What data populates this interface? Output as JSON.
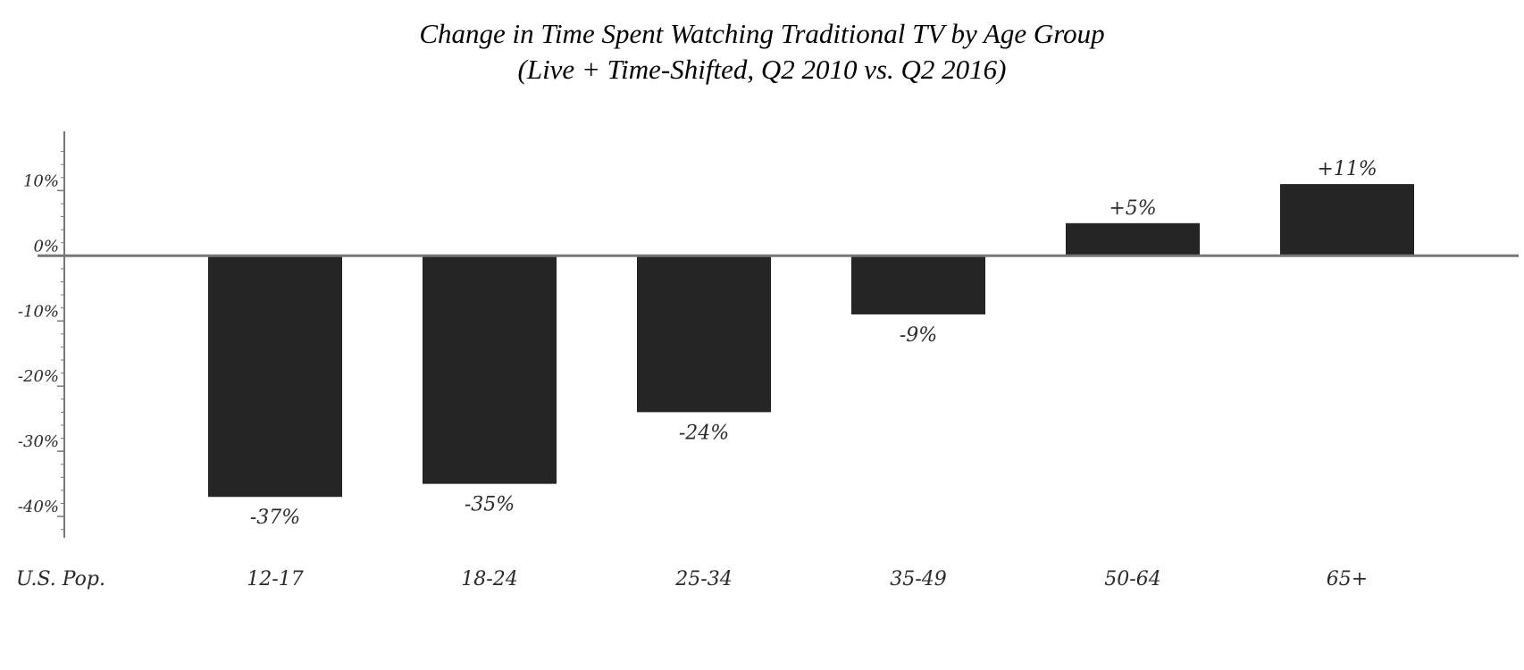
{
  "chart_data": {
    "type": "bar",
    "title": "Change in Time Spent Watching Traditional TV by Age Group",
    "subtitle": "(Live + Time-Shifted, Q2 2010 vs. Q2 2016)",
    "categories": [
      "U.S. Pop.",
      "12-17",
      "18-24",
      "25-34",
      "35-49",
      "50-64",
      "65+"
    ],
    "values": [
      null,
      -37,
      -35,
      -24,
      -9,
      5,
      11
    ],
    "data_labels": [
      "",
      "-37%",
      "-35%",
      "-24%",
      "-9%",
      "+5%",
      "+11%"
    ],
    "y_ticks": [
      10,
      0,
      -10,
      -20,
      -30,
      -40
    ],
    "y_tick_labels": [
      "10%",
      "0%",
      "-10%",
      "-20%",
      "-30%",
      "-40%"
    ],
    "ylim": [
      -43,
      18
    ],
    "xlabel": "",
    "ylabel": "",
    "grid": false,
    "legend": "none",
    "bar_color": "#252525",
    "axis_color": "#777777"
  }
}
